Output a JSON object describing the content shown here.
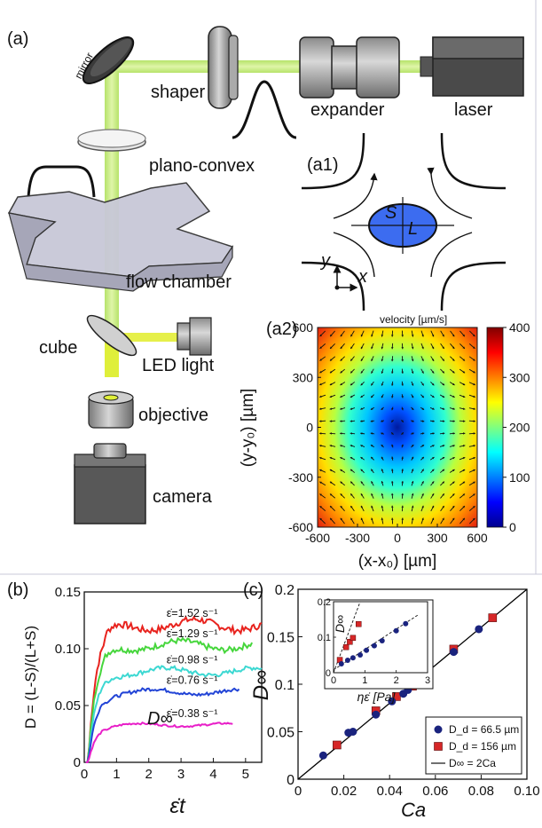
{
  "panel_a": {
    "panel_label": "(a)",
    "components": {
      "mirror": "mirror",
      "shaper": "shaper",
      "expander": "expander",
      "laser": "laser",
      "plano_convex": "plano-convex",
      "flow_chamber": "flow chamber",
      "cube": "cube",
      "led_light": "LED light",
      "objective": "objective",
      "camera": "camera"
    },
    "a1": {
      "label": "(a1)",
      "S": "S",
      "L": "L",
      "x": "x",
      "y": "y"
    }
  },
  "chart_data": [
    {
      "id": "a2",
      "type": "heatmap",
      "panel_label": "(a2)",
      "title": "velocity [µm/s]",
      "xlabel": "(x-x₀) [µm]",
      "ylabel": "(y-y₀) [µm]",
      "xlim": [
        -600,
        600
      ],
      "ylim": [
        -600,
        600
      ],
      "x_ticks": [
        "-600",
        "-300",
        "0",
        "300",
        "600"
      ],
      "y_ticks": [
        "600",
        "300",
        "0",
        "-300",
        "-600"
      ],
      "colorbar_ticks": [
        "400",
        "300",
        "200",
        "100",
        "0"
      ],
      "colorbar_range": [
        0,
        400
      ]
    },
    {
      "id": "b",
      "type": "line",
      "panel_label": "(b)",
      "xlabel": "ε̇t",
      "ylabel": "D = (L-S)/(L+S)",
      "xlim": [
        0,
        5.5
      ],
      "ylim": [
        0,
        0.15
      ],
      "x_ticks": [
        "0",
        "1",
        "2",
        "3",
        "4",
        "5"
      ],
      "y_ticks": [
        "0",
        "0.05",
        "0.10",
        "0.15"
      ],
      "annotation": "D∞",
      "series": [
        {
          "name": "ε̇=1.52 s⁻¹",
          "color": "#e8231e",
          "plateau": 0.121,
          "end": 5.5
        },
        {
          "name": "ε̇=1.29 s⁻¹",
          "color": "#46d63c",
          "plateau": 0.103,
          "end": 5.2
        },
        {
          "name": "ε̇=0.98 s⁻¹",
          "color": "#3cd8d2",
          "plateau": 0.08,
          "end": 5.5
        },
        {
          "name": "ε̇=0.76 s⁻¹",
          "color": "#2244d6",
          "plateau": 0.062,
          "end": 4.8
        },
        {
          "name": "ε̇=0.38 s⁻¹",
          "color": "#e81fc8",
          "plateau": 0.033,
          "end": 4.6
        }
      ]
    },
    {
      "id": "c",
      "type": "scatter",
      "panel_label": "(c)",
      "xlabel": "Ca",
      "ylabel": "D∞",
      "xlim": [
        0,
        0.1
      ],
      "ylim": [
        0,
        0.2
      ],
      "x_ticks": [
        "0",
        "0.02",
        "0.04",
        "0.06",
        "0.08",
        "0.10"
      ],
      "y_ticks": [
        "0",
        "0.05",
        "0.1",
        "0.15",
        "0.2"
      ],
      "legend_position": "bottom-right",
      "series": [
        {
          "name": "D_d = 66.5 µm",
          "marker": "circle",
          "color": "#1a237e",
          "x": [
            0.011,
            0.022,
            0.024,
            0.034,
            0.041,
            0.046,
            0.048,
            0.068,
            0.079
          ],
          "y": [
            0.025,
            0.049,
            0.05,
            0.068,
            0.082,
            0.09,
            0.094,
            0.134,
            0.158
          ]
        },
        {
          "name": "D_d = 156 µm",
          "marker": "square",
          "color": "#d62728",
          "x": [
            0.017,
            0.034,
            0.043,
            0.05,
            0.068,
            0.085
          ],
          "y": [
            0.036,
            0.072,
            0.087,
            0.098,
            0.137,
            0.17
          ]
        },
        {
          "name": "D∞ = 2Ca",
          "marker": "line",
          "color": "#000000",
          "slope": 2
        }
      ],
      "inset": {
        "xlabel": "ηε̇ [Pa]",
        "ylabel": "D∞",
        "xlim": [
          0,
          3
        ],
        "ylim": [
          0,
          0.2
        ],
        "x_ticks": [
          "0",
          "1",
          "2",
          "3"
        ],
        "y_ticks": [
          "0",
          "0.1",
          "0.2"
        ],
        "series": [
          {
            "name": "D_d = 66.5 µm",
            "x": [
              0.25,
              0.45,
              0.62,
              0.85,
              1.05,
              1.3,
              1.55,
              2.0,
              2.3
            ],
            "y": [
              0.025,
              0.035,
              0.042,
              0.05,
              0.063,
              0.076,
              0.09,
              0.118,
              0.138
            ]
          },
          {
            "name": "D_d = 156 µm",
            "x": [
              0.2,
              0.4,
              0.52,
              0.62,
              0.8
            ],
            "y": [
              0.036,
              0.072,
              0.087,
              0.098,
              0.137
            ]
          }
        ]
      }
    }
  ]
}
